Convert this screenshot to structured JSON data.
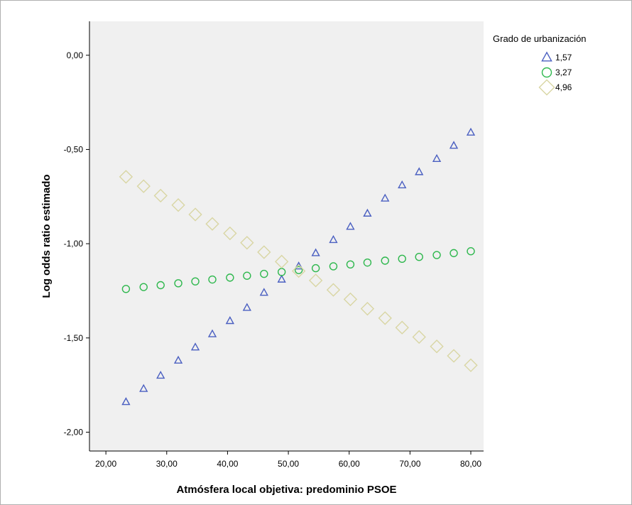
{
  "chart_data": {
    "type": "scatter",
    "title": "",
    "xlabel": "Atmósfera local objetiva: predominio PSOE",
    "ylabel": "Log odds ratio estimado",
    "xlim": [
      17.3,
      82.1
    ],
    "ylim": [
      -2.1,
      0.18
    ],
    "xticks": [
      20,
      30,
      40,
      50,
      60,
      70,
      80
    ],
    "xtick_labels": [
      "20,00",
      "30,00",
      "40,00",
      "50,00",
      "60,00",
      "70,00",
      "80,00"
    ],
    "yticks": [
      0,
      -0.5,
      -1,
      -1.5,
      -2
    ],
    "ytick_labels": [
      "0,00",
      "-0,50",
      "-1,00",
      "-1,50",
      "-2,00"
    ],
    "grid": false,
    "legend": {
      "title": "Grado de urbanización",
      "position": "top-right, outside plot"
    },
    "plot_background": "#f0f0f0",
    "x": [
      23.3,
      26.2,
      29.0,
      31.9,
      34.7,
      37.5,
      40.4,
      43.2,
      46.0,
      48.9,
      51.7,
      54.5,
      57.4,
      60.2,
      63.0,
      65.9,
      68.7,
      71.5,
      74.4,
      77.2,
      80.0
    ],
    "series": [
      {
        "name": "1,57",
        "marker": "triangle",
        "color": "#4a5fc1",
        "values": [
          -1.84,
          -1.77,
          -1.7,
          -1.62,
          -1.55,
          -1.48,
          -1.41,
          -1.34,
          -1.26,
          -1.19,
          -1.12,
          -1.05,
          -0.98,
          -0.91,
          -0.84,
          -0.76,
          -0.69,
          -0.62,
          -0.55,
          -0.48,
          -0.41
        ]
      },
      {
        "name": "3,27",
        "marker": "circle",
        "color": "#2fb84e",
        "values": [
          -1.24,
          -1.23,
          -1.22,
          -1.21,
          -1.2,
          -1.19,
          -1.18,
          -1.17,
          -1.16,
          -1.15,
          -1.14,
          -1.13,
          -1.12,
          -1.11,
          -1.1,
          -1.09,
          -1.08,
          -1.07,
          -1.06,
          -1.05,
          -1.04
        ]
      },
      {
        "name": "4,96",
        "marker": "diamond",
        "color": "#d9d6a4",
        "values": [
          -0.645,
          -0.695,
          -0.745,
          -0.795,
          -0.845,
          -0.895,
          -0.945,
          -0.995,
          -1.045,
          -1.095,
          -1.145,
          -1.195,
          -1.245,
          -1.295,
          -1.345,
          -1.395,
          -1.445,
          -1.495,
          -1.545,
          -1.595,
          -1.645
        ]
      }
    ]
  }
}
